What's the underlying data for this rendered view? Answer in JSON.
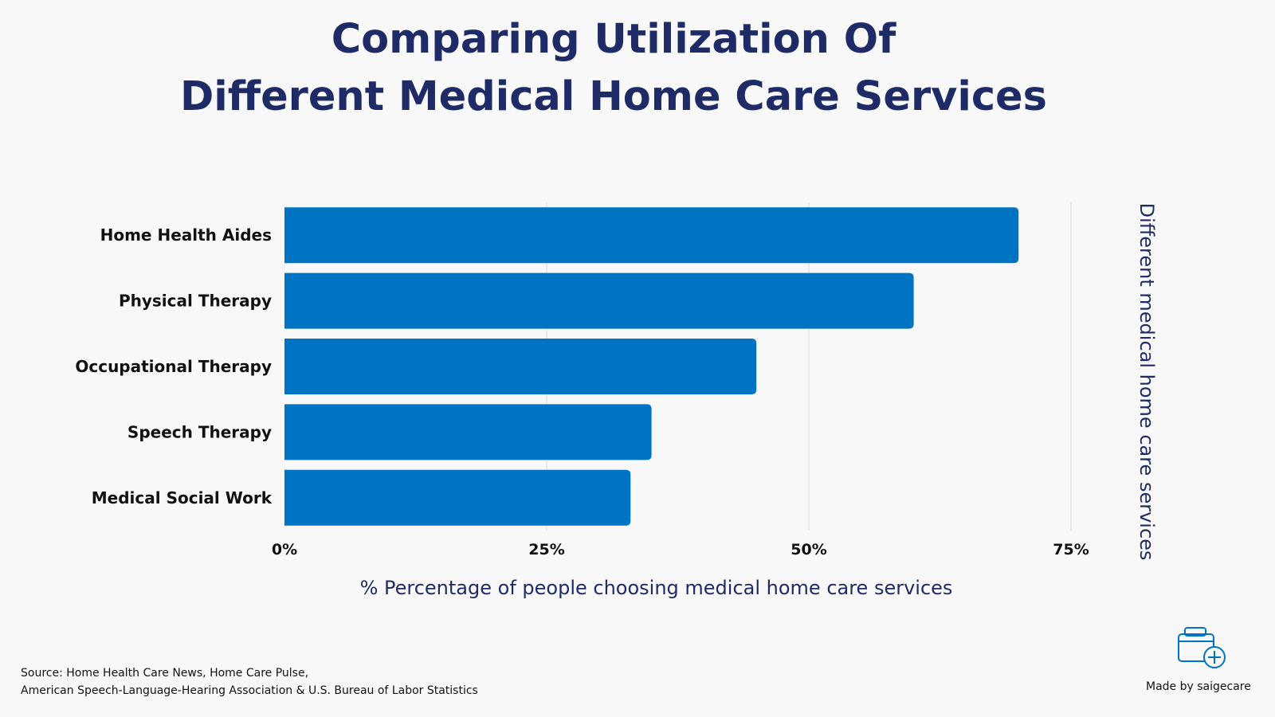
{
  "title": {
    "line1": "Comparing Utilization Of",
    "line2": "Different Medical Home Care Services"
  },
  "chart_data": {
    "type": "bar",
    "orientation": "horizontal",
    "categories": [
      "Home Health Aides",
      "Physical Therapy",
      "Occupational Therapy",
      "Speech Therapy",
      "Medical Social Work"
    ],
    "values": [
      70,
      60,
      45,
      35,
      33
    ],
    "unit": "%",
    "xlim": [
      0,
      75
    ],
    "xticks": [
      "0%",
      "25%",
      "50%",
      "75%"
    ],
    "xlabel": "% Percentage of people choosing medical home care services",
    "ylabel": "Different medical home care services",
    "grid": "vertical",
    "legend": "none"
  },
  "colors": {
    "bar": "#0074c2",
    "title": "#1f2b66",
    "axis_label": "#1f2b66",
    "grid": "#dcdcdc",
    "background": "#f8f8f8"
  },
  "footer": {
    "source_line1": "Source: Home Health Care News, Home Care Pulse,",
    "source_line2": "American Speech-Language-Hearing Association & U.S. Bureau of Labor Statistics",
    "made_by": "Made by saigecare",
    "logo_icon": "medical-kit-icon"
  }
}
